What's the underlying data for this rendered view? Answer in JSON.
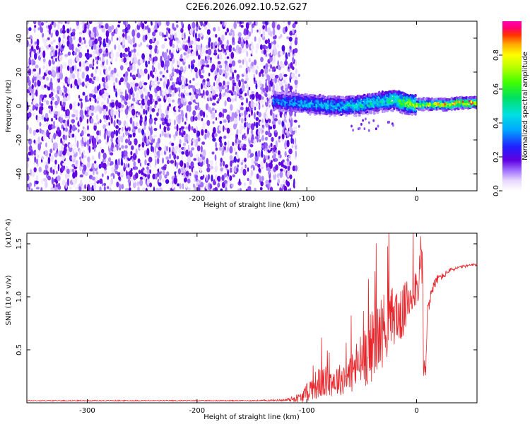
{
  "title": "C2E6.2026.092.10.52.G27",
  "chart_data": [
    {
      "type": "heatmap",
      "xlabel": "Height of straight line (km)",
      "ylabel": "Frequency (Hz)",
      "xlim": [
        -355,
        55
      ],
      "ylim": [
        -50,
        50
      ],
      "xticks": [
        -300,
        -200,
        -100,
        0
      ],
      "yticks": [
        -40,
        -20,
        0,
        20,
        40
      ],
      "grid": false,
      "colorbar": {
        "label": "Normalized spectral amplitude",
        "range": [
          0.0,
          1.0
        ],
        "ticks": [
          0.0,
          0.2,
          0.4,
          0.6,
          0.8
        ],
        "tick_labels": [
          "0.0",
          "0.2",
          "0.4",
          "0.6",
          "0.8"
        ]
      },
      "noise_region": {
        "x_range": [
          -355,
          -110
        ],
        "freq_range": [
          -50,
          50
        ],
        "typical_amplitude": 0.15
      },
      "signal_ridge": {
        "x": [
          -130,
          -110,
          -90,
          -70,
          -50,
          -30,
          -20,
          -10,
          0,
          10,
          20,
          30,
          40,
          55
        ],
        "frequency": [
          3,
          2,
          1,
          0,
          1,
          3,
          4,
          2,
          1,
          1,
          1,
          1,
          2,
          2
        ],
        "amplitude": [
          0.35,
          0.4,
          0.45,
          0.45,
          0.5,
          0.55,
          0.6,
          0.7,
          0.75,
          0.8,
          0.85,
          0.9,
          0.95,
          1.0
        ]
      }
    },
    {
      "type": "line",
      "xlabel": "Height of straight line (km)",
      "ylabel": "SNR (10 * v/v)",
      "scale_label": "(x10^4)",
      "xlim": [
        -355,
        55
      ],
      "ylim": [
        0,
        1.6
      ],
      "xticks": [
        -300,
        -200,
        -100,
        0
      ],
      "yticks": [
        0.5,
        1.0,
        1.5
      ],
      "ytick_labels": [
        "0.5",
        "1.0",
        "1.5"
      ],
      "grid": false,
      "series": [
        {
          "name": "SNR",
          "color": "#e8262b",
          "x": [
            -355,
            -300,
            -250,
            -200,
            -150,
            -120,
            -105,
            -95,
            -90,
            -80,
            -70,
            -60,
            -50,
            -40,
            -35,
            -30,
            -25,
            -20,
            -15,
            -10,
            -5,
            0,
            3,
            5,
            8,
            10,
            15,
            20,
            25,
            30,
            40,
            50,
            55
          ],
          "y": [
            0.02,
            0.02,
            0.02,
            0.02,
            0.02,
            0.025,
            0.05,
            0.15,
            0.18,
            0.2,
            0.22,
            0.28,
            0.4,
            0.55,
            0.62,
            0.7,
            0.75,
            0.85,
            0.8,
            0.9,
            1.05,
            1.1,
            1.2,
            1.3,
            0.15,
            0.9,
            1.1,
            1.18,
            1.2,
            1.25,
            1.28,
            1.3,
            1.3
          ],
          "noise": [
            0.005,
            0.005,
            0.005,
            0.005,
            0.005,
            0.01,
            0.05,
            0.12,
            0.15,
            0.15,
            0.15,
            0.2,
            0.28,
            0.35,
            0.35,
            0.35,
            0.3,
            0.3,
            0.25,
            0.25,
            0.25,
            0.2,
            0.2,
            0.25,
            0.05,
            0.12,
            0.06,
            0.04,
            0.03,
            0.02,
            0.015,
            0.01,
            0.01
          ]
        }
      ]
    }
  ]
}
